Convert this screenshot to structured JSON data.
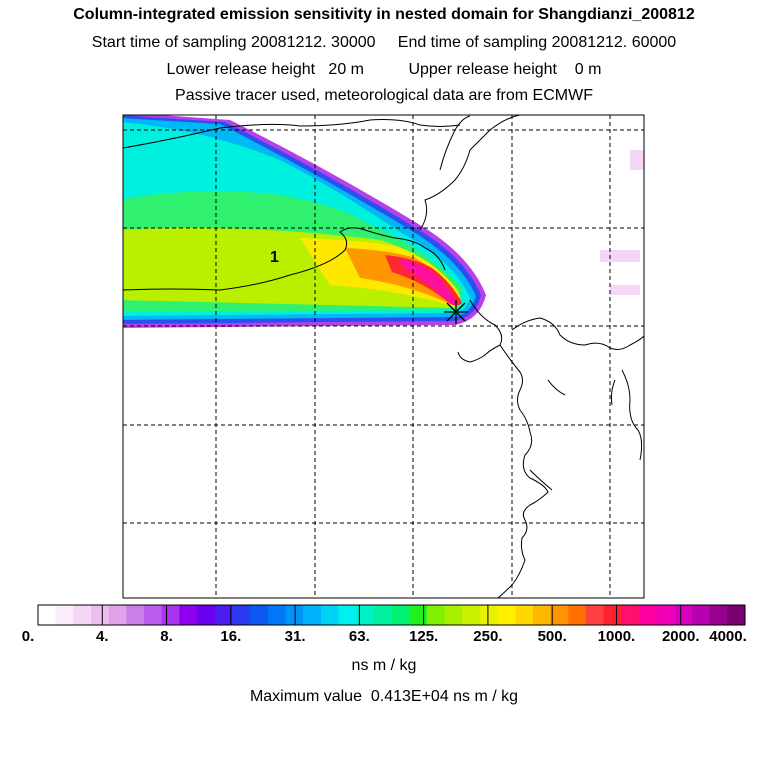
{
  "header": {
    "title": "Column-integrated emission sensitivity in nested domain for Shangdianzi_200812",
    "sampling_line": "Start time of sampling 20081212. 30000     End time of sampling 20081212. 60000",
    "release_line": "Lower release height   20 m          Upper release height    0 m",
    "tracer_line": "Passive tracer used, meteorological data are from ECMWF"
  },
  "map": {
    "contour_label": "1",
    "station_marker": "asterisk-icon"
  },
  "colorbar": {
    "colors": [
      "#ffffff",
      "#fbecfb",
      "#f5d6f5",
      "#eebdef",
      "#e3a2e8",
      "#c97ee9",
      "#b95cec",
      "#a933ef",
      "#9000f0",
      "#6a00f0",
      "#4a1df0",
      "#2b39f0",
      "#0d58f2",
      "#0077f4",
      "#0094f6",
      "#00b0f8",
      "#00d2f6",
      "#00f0f0",
      "#00f0c8",
      "#00f0a0",
      "#00f070",
      "#20f020",
      "#80f000",
      "#a8f000",
      "#c8f000",
      "#e8f000",
      "#fff000",
      "#ffd800",
      "#ffb800",
      "#ff9400",
      "#ff7000",
      "#ff4040",
      "#ff2030",
      "#ff1070",
      "#ff00a0",
      "#f000b8",
      "#d800c0",
      "#b800b0",
      "#980090",
      "#780070"
    ],
    "tick_labels": [
      "0.",
      "4.",
      "8.",
      "16.",
      "31.",
      "63.",
      "125.",
      "250.",
      "500.",
      "1000.",
      "2000.",
      "4000."
    ],
    "units": "ns m / kg"
  },
  "footer": {
    "maximum": "Maximum value  0.413E+04 ns m / kg"
  }
}
